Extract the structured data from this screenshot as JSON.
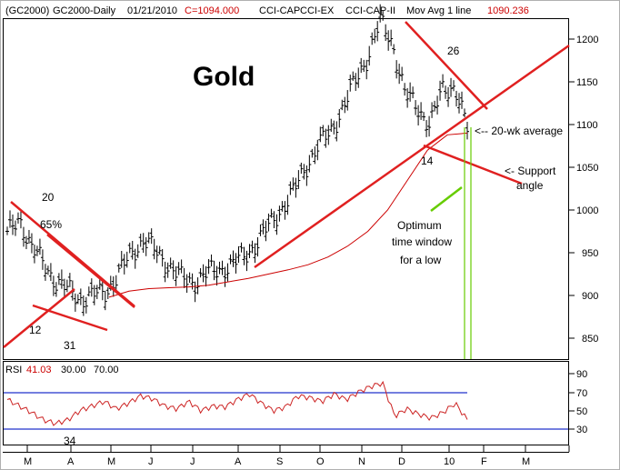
{
  "header": {
    "symbol": "(GC2000)",
    "name": "GC2000-Daily",
    "date": "01/21/2010",
    "close": "C=1094.000",
    "ind1": "CCI-CAP",
    "ind2": "CCI-EX",
    "ind3": "CCI-CAP-II",
    "ma_label": "Mov Avg 1 line",
    "ma_value": "1090.236"
  },
  "chart_data": [
    {
      "type": "bar",
      "title": "Gold",
      "y_ticks": [
        "1200",
        "1150",
        "1100",
        "1050",
        "1000",
        "950",
        "900",
        "850"
      ],
      "ylim": [
        825,
        1232
      ],
      "x_labels": [
        "M",
        "A",
        "M",
        "J",
        "J",
        "A",
        "S",
        "O",
        "N",
        "D",
        "10",
        "F",
        "M"
      ],
      "approx_closes": [
        970,
        990,
        955,
        935,
        915,
        905,
        895,
        900,
        905,
        925,
        950,
        965,
        950,
        935,
        920,
        915,
        925,
        930,
        935,
        945,
        960,
        980,
        1000,
        1020,
        1050,
        1075,
        1090,
        1120,
        1150,
        1180,
        1220,
        1195,
        1135,
        1120,
        1100,
        1140,
        1145,
        1094
      ],
      "moving_average": [
        898,
        905,
        908,
        909,
        910,
        912,
        916,
        920,
        925,
        930,
        936,
        945,
        958,
        975,
        1000,
        1035,
        1070,
        1088,
        1090
      ],
      "annotations": [
        "20",
        "65%",
        "12",
        "31",
        "26",
        "14",
        "<-- 20-wk average",
        "<- Support",
        "angle",
        "Optimum",
        "time window",
        "for a low"
      ],
      "colors": {
        "price_bars": "#000000",
        "moving_average": "#cc0000",
        "trendlines": "#e02020",
        "time_window": "#66cc00"
      }
    },
    {
      "type": "line",
      "title": "RSI",
      "label": "RSI",
      "value_current": "41.03",
      "level_low": "30.00",
      "level_high": "70.00",
      "y_ticks": [
        "90",
        "70",
        "50",
        "30"
      ],
      "ylim": [
        20,
        100
      ],
      "annotations": [
        "34"
      ],
      "approx_values": [
        62,
        55,
        48,
        40,
        36,
        40,
        50,
        55,
        60,
        52,
        58,
        66,
        63,
        55,
        52,
        60,
        50,
        55,
        54,
        62,
        68,
        58,
        50,
        54,
        66,
        64,
        60,
        68,
        62,
        70,
        76,
        80,
        44,
        52,
        46,
        42,
        48,
        58,
        40
      ],
      "colors": {
        "line": "#cc2222",
        "levels": "#2233cc"
      }
    }
  ]
}
